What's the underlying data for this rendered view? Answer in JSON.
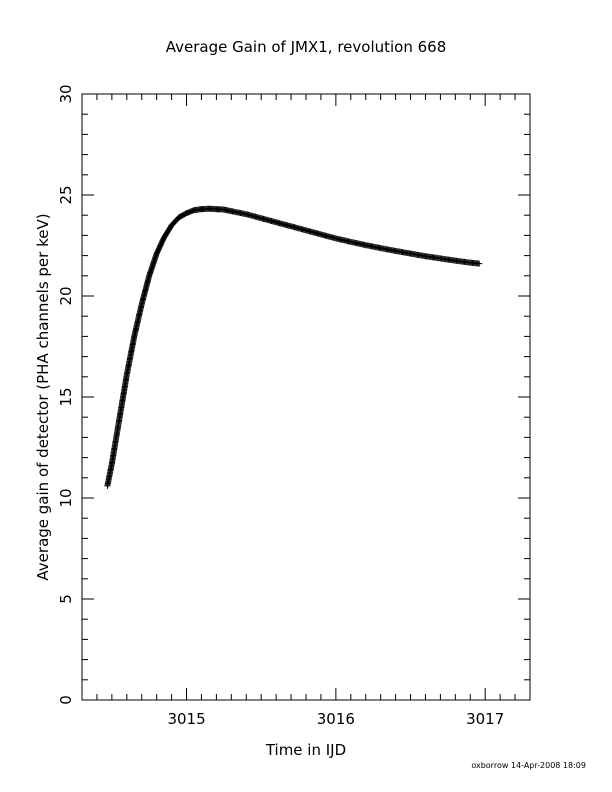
{
  "chart_data": {
    "type": "scatter",
    "title": "Average Gain of JMX1, revolution 668",
    "xlabel": "Time in IJD",
    "ylabel": "Average gain of detector (PHA channels per keV)",
    "xlim": [
      3014.3,
      3017.3
    ],
    "ylim": [
      0,
      30
    ],
    "x_ticks": [
      3015,
      3016,
      3017
    ],
    "y_ticks": [
      0,
      5,
      10,
      15,
      20,
      25,
      30
    ],
    "x_tick_labels": [
      "3015",
      "3016",
      "3017"
    ],
    "y_tick_labels": [
      "0",
      "5",
      "10",
      "15",
      "20",
      "25",
      "30"
    ],
    "marker": "plus",
    "grid": false,
    "series": [
      {
        "x": [
          3014.47,
          3014.5,
          3014.55,
          3014.6,
          3014.65,
          3014.7,
          3014.75,
          3014.8,
          3014.85,
          3014.9,
          3014.95,
          3015.0,
          3015.05,
          3015.1,
          3015.15,
          3015.2,
          3015.25,
          3015.3,
          3015.4,
          3015.5,
          3015.6,
          3015.7,
          3015.8,
          3015.9,
          3016.0,
          3016.1,
          3016.2,
          3016.3,
          3016.4,
          3016.5,
          3016.6,
          3016.7,
          3016.8,
          3016.9,
          3016.96
        ],
        "y": [
          10.6,
          11.7,
          13.9,
          16.1,
          18.0,
          19.6,
          21.0,
          22.1,
          22.9,
          23.5,
          23.9,
          24.1,
          24.25,
          24.3,
          24.32,
          24.3,
          24.28,
          24.2,
          24.05,
          23.85,
          23.65,
          23.45,
          23.25,
          23.05,
          22.85,
          22.68,
          22.52,
          22.37,
          22.23,
          22.1,
          21.97,
          21.86,
          21.75,
          21.65,
          21.6
        ]
      }
    ]
  },
  "footer": {
    "stamp": "oxborrow 14-Apr-2008 18:09"
  }
}
